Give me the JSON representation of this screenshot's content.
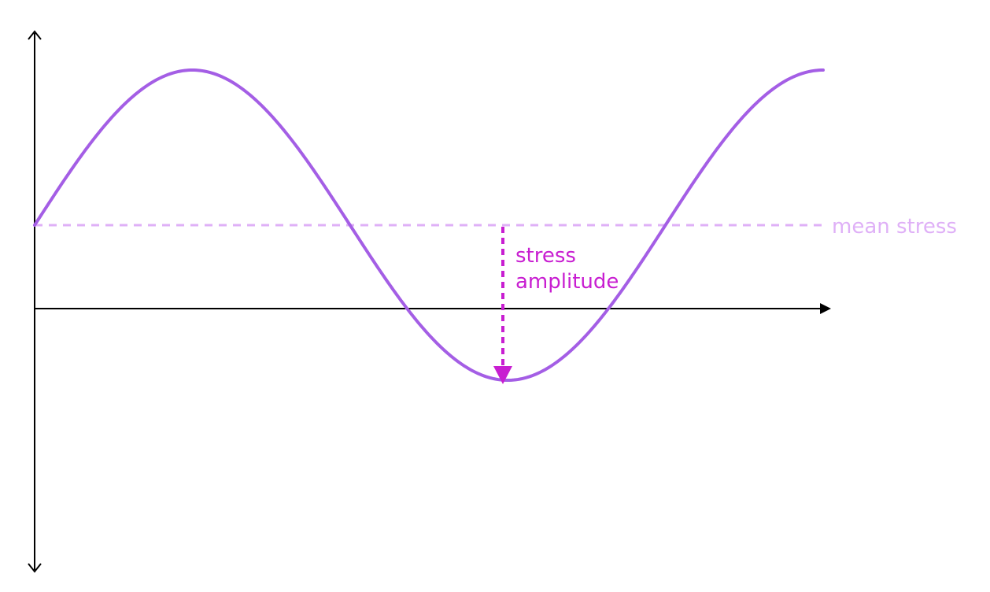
{
  "colors": {
    "background": "#ffffff",
    "axis": "#000000",
    "wave": "#a45ee5",
    "mean_line": "#dfb0f7",
    "amplitude": "#c81ed1"
  },
  "labels": {
    "mean_stress": "mean stress",
    "amplitude_line1": "stress",
    "amplitude_line2": "amplitude"
  },
  "wave": {
    "shape": "sine",
    "cycles": 1.25,
    "mean_level": 0,
    "amplitude": 1
  },
  "axes": {
    "y_arrows": "both-ends",
    "x_arrow": "right"
  }
}
